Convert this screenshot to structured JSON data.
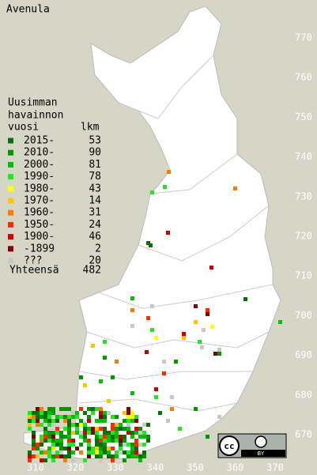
{
  "title": "Avenula",
  "legend": {
    "heading": [
      "Uusimman",
      "havainnon",
      "vuosi"
    ],
    "count_heading": "lkm",
    "rows": [
      {
        "label": "2015-",
        "count": 53,
        "color": "#0a6e0a"
      },
      {
        "label": "2010-",
        "count": 90,
        "color": "#009600"
      },
      {
        "label": "2000-",
        "count": 81,
        "color": "#00c000"
      },
      {
        "label": "1990-",
        "count": 78,
        "color": "#22e622"
      },
      {
        "label": "1980-",
        "count": 43,
        "color": "#ffff00"
      },
      {
        "label": "1970-",
        "count": 14,
        "color": "#ffc400"
      },
      {
        "label": "1960-",
        "count": 31,
        "color": "#ff7a00"
      },
      {
        "label": "1950-",
        "count": 24,
        "color": "#ff2a00"
      },
      {
        "label": "1900-",
        "count": 46,
        "color": "#cc0000"
      },
      {
        "label": "-1899",
        "count": 2,
        "color": "#800000"
      },
      {
        "label": "???",
        "count": 20,
        "color": "#c8c8c8"
      }
    ],
    "total": {
      "label": "Yhteensä",
      "count": 482
    }
  },
  "map": {
    "xticks": [
      310,
      320,
      330,
      340,
      350,
      360,
      370
    ],
    "yticks": [
      670,
      680,
      690,
      700,
      710,
      720,
      730,
      740,
      750,
      760,
      770
    ]
  },
  "license": {
    "icon": "cc",
    "label": "BY"
  }
}
